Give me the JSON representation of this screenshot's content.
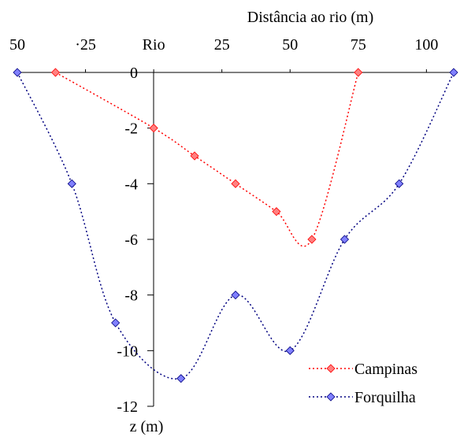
{
  "chart_data": {
    "type": "line",
    "title": "",
    "xlabel": "Distância ao rio (m)",
    "ylabel": "z (m)",
    "x_axis_position": "top",
    "x_scale": "distance from river; left of Rio shown as absolute values",
    "xlim": [
      -50,
      110
    ],
    "ylim": [
      -12,
      0
    ],
    "x_ticks": [
      -50,
      -25,
      0,
      25,
      50,
      75,
      100
    ],
    "x_tick_labels": [
      "50",
      "·25",
      "Rio",
      "25",
      "50",
      "75",
      "100"
    ],
    "y_ticks": [
      0,
      -2,
      -4,
      -6,
      -8,
      -10,
      -12
    ],
    "y_tick_labels": [
      "0",
      "-2",
      "-4",
      "-6",
      "-8",
      "-10",
      "-12"
    ],
    "grid": false,
    "legend_position": "bottom-right",
    "series": [
      {
        "name": "Campinas",
        "color": "#ff0000",
        "marker_fill": "#ff8080",
        "line_style": "dotted",
        "marker": "diamond",
        "x": [
          -36,
          0,
          15,
          30,
          45,
          58,
          75
        ],
        "y": [
          0,
          -2,
          -3,
          -4,
          -5,
          -6,
          0
        ]
      },
      {
        "name": "Forquilha",
        "color": "#000080",
        "marker_fill": "#8080ff",
        "line_style": "dotted",
        "marker": "diamond",
        "x": [
          -50,
          -30,
          -14,
          10,
          30,
          50,
          70,
          90,
          110
        ],
        "y": [
          0,
          -4,
          -9,
          -11,
          -8,
          -10,
          -6,
          -4,
          0
        ]
      }
    ]
  }
}
